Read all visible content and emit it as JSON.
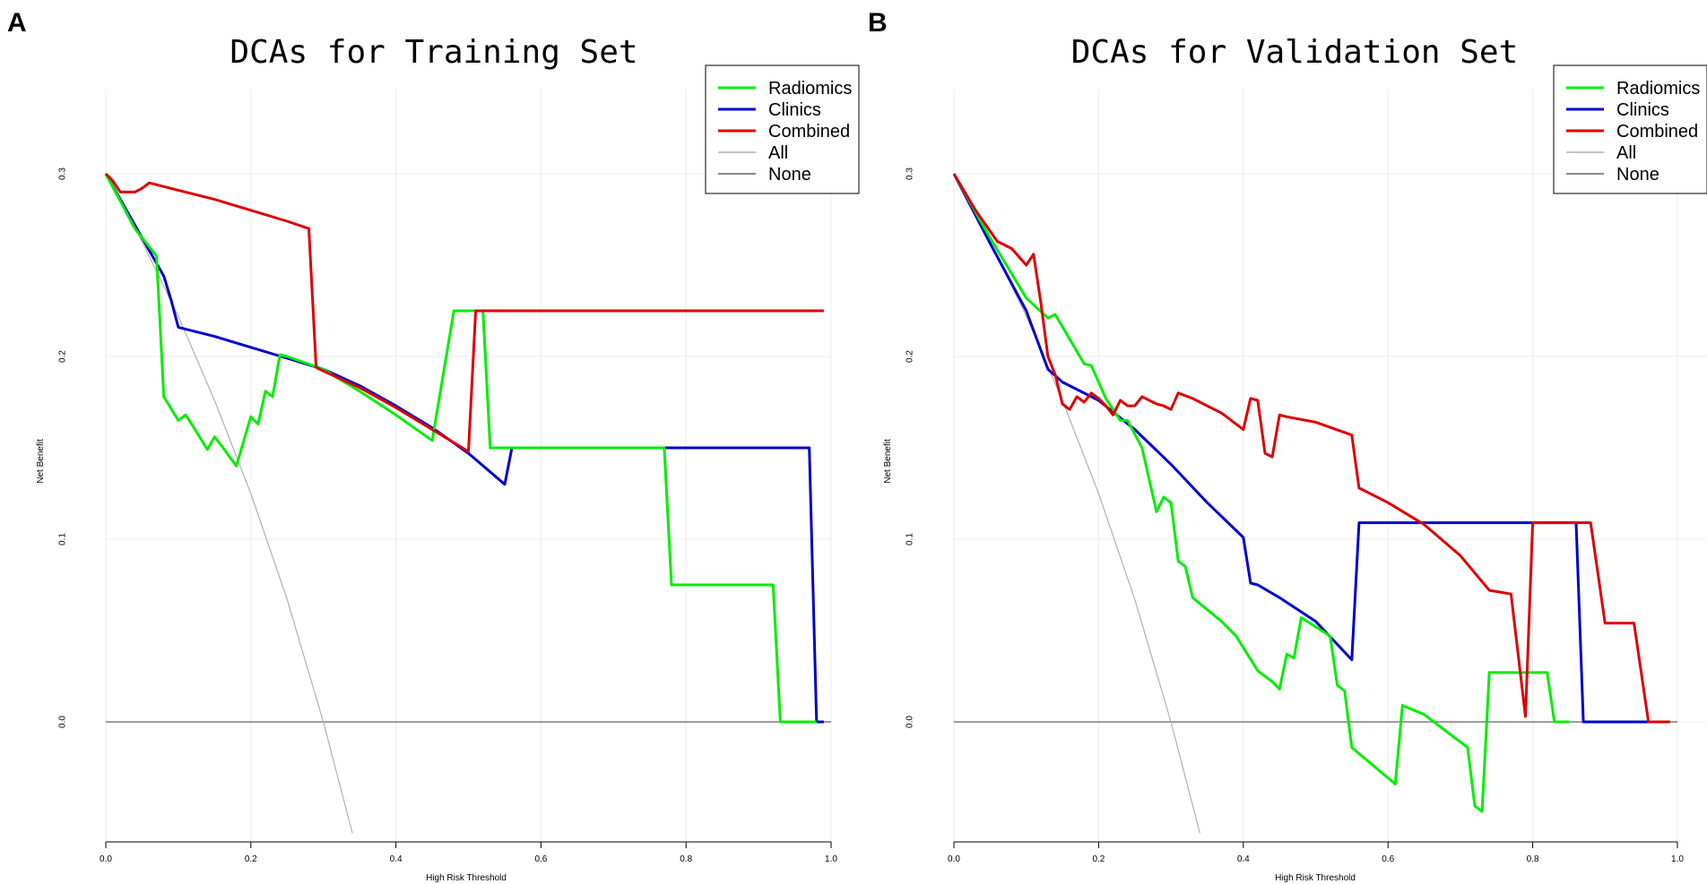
{
  "panels": [
    {
      "letter": "A"
    },
    {
      "letter": "B"
    }
  ],
  "chart_data": [
    {
      "type": "line",
      "title": "DCAs for Training Set",
      "xlabel": "High Risk Threshold",
      "ylabel": "Net Benefit",
      "xlim": [
        0.0,
        1.0
      ],
      "ylim": [
        -0.066,
        0.345
      ],
      "xticks": [
        0.0,
        0.2,
        0.4,
        0.6,
        0.8,
        1.0
      ],
      "xtick_labels": [
        "0.0",
        "0.2",
        "0.4",
        "0.6",
        "0.8",
        "1.0"
      ],
      "yticks": [
        0.0,
        0.1,
        0.2,
        0.3
      ],
      "ytick_labels": [
        "0.0",
        "0.1",
        "0.2",
        "0.3"
      ],
      "grid": true,
      "legend_position": "top-right",
      "series": [
        {
          "name": "Radiomics",
          "color": "#00ee00",
          "x": [
            0.0,
            0.02,
            0.04,
            0.06,
            0.07,
            0.08,
            0.1,
            0.11,
            0.12,
            0.14,
            0.15,
            0.16,
            0.18,
            0.2,
            0.21,
            0.22,
            0.23,
            0.24,
            0.25,
            0.3,
            0.35,
            0.4,
            0.45,
            0.48,
            0.49,
            0.51,
            0.52,
            0.53,
            0.56,
            0.6,
            0.7,
            0.77,
            0.78,
            0.92,
            0.93,
            0.98
          ],
          "y": [
            0.3,
            0.285,
            0.27,
            0.26,
            0.255,
            0.178,
            0.165,
            0.168,
            0.162,
            0.149,
            0.156,
            0.151,
            0.14,
            0.167,
            0.163,
            0.181,
            0.178,
            0.201,
            0.2,
            0.193,
            0.181,
            0.168,
            0.154,
            0.225,
            0.225,
            0.225,
            0.225,
            0.15,
            0.15,
            0.15,
            0.15,
            0.15,
            0.075,
            0.075,
            0.0,
            0.0
          ]
        },
        {
          "name": "Clinics",
          "color": "#0000cc",
          "x": [
            0.0,
            0.02,
            0.04,
            0.06,
            0.08,
            0.09,
            0.1,
            0.15,
            0.2,
            0.25,
            0.3,
            0.35,
            0.4,
            0.45,
            0.5,
            0.55,
            0.56,
            0.6,
            0.7,
            0.8,
            0.9,
            0.97,
            0.98,
            0.99
          ],
          "y": [
            0.3,
            0.286,
            0.272,
            0.258,
            0.244,
            0.231,
            0.216,
            0.211,
            0.205,
            0.199,
            0.193,
            0.184,
            0.173,
            0.161,
            0.147,
            0.13,
            0.15,
            0.15,
            0.15,
            0.15,
            0.15,
            0.15,
            0.0,
            0.0
          ]
        },
        {
          "name": "Combined",
          "color": "#dd0000",
          "x": [
            0.0,
            0.01,
            0.02,
            0.03,
            0.04,
            0.05,
            0.06,
            0.1,
            0.15,
            0.2,
            0.25,
            0.28,
            0.29,
            0.3,
            0.35,
            0.4,
            0.45,
            0.5,
            0.51,
            0.52,
            0.6,
            0.7,
            0.8,
            0.9,
            0.99
          ],
          "y": [
            0.3,
            0.296,
            0.29,
            0.29,
            0.29,
            0.292,
            0.295,
            0.291,
            0.286,
            0.28,
            0.274,
            0.27,
            0.194,
            0.192,
            0.183,
            0.172,
            0.16,
            0.148,
            0.225,
            0.225,
            0.225,
            0.225,
            0.225,
            0.225,
            0.225
          ]
        },
        {
          "name": "All",
          "color": "#b0b0b0",
          "x": [
            0.0,
            0.05,
            0.1,
            0.15,
            0.2,
            0.25,
            0.3,
            0.34
          ],
          "y": [
            0.3,
            0.263,
            0.222,
            0.176,
            0.125,
            0.067,
            0.0,
            -0.061
          ]
        },
        {
          "name": "None",
          "color": "#606060",
          "x": [
            0.0,
            1.0
          ],
          "y": [
            0.0,
            0.0
          ]
        }
      ]
    },
    {
      "type": "line",
      "title": "DCAs for Validation Set",
      "xlabel": "High Risk Threshold",
      "ylabel": "Net Benefit",
      "xlim": [
        0.0,
        1.0
      ],
      "ylim": [
        -0.066,
        0.345
      ],
      "xticks": [
        0.0,
        0.2,
        0.4,
        0.6,
        0.8,
        1.0
      ],
      "xtick_labels": [
        "0.0",
        "0.2",
        "0.4",
        "0.6",
        "0.8",
        "1.0"
      ],
      "yticks": [
        0.0,
        0.1,
        0.2,
        0.3
      ],
      "ytick_labels": [
        "0.0",
        "0.1",
        "0.2",
        "0.3"
      ],
      "grid": true,
      "legend_position": "top-right",
      "series": [
        {
          "name": "Radiomics",
          "color": "#00ee00",
          "x": [
            0.0,
            0.05,
            0.1,
            0.13,
            0.14,
            0.18,
            0.19,
            0.21,
            0.23,
            0.24,
            0.26,
            0.28,
            0.29,
            0.3,
            0.31,
            0.32,
            0.33,
            0.37,
            0.39,
            0.42,
            0.44,
            0.45,
            0.46,
            0.47,
            0.48,
            0.5,
            0.52,
            0.53,
            0.54,
            0.55,
            0.61,
            0.62,
            0.65,
            0.7,
            0.71,
            0.72,
            0.73,
            0.74,
            0.82,
            0.83,
            0.85
          ],
          "y": [
            0.3,
            0.265,
            0.232,
            0.221,
            0.223,
            0.196,
            0.195,
            0.177,
            0.165,
            0.165,
            0.15,
            0.115,
            0.123,
            0.12,
            0.088,
            0.085,
            0.068,
            0.055,
            0.047,
            0.028,
            0.022,
            0.018,
            0.037,
            0.035,
            0.057,
            0.052,
            0.047,
            0.02,
            0.017,
            -0.014,
            -0.034,
            0.009,
            0.004,
            -0.011,
            -0.014,
            -0.046,
            -0.049,
            0.027,
            0.027,
            0.0,
            0.0
          ]
        },
        {
          "name": "Clinics",
          "color": "#0000cc",
          "x": [
            0.0,
            0.05,
            0.1,
            0.13,
            0.15,
            0.2,
            0.25,
            0.3,
            0.35,
            0.4,
            0.41,
            0.42,
            0.45,
            0.5,
            0.55,
            0.56,
            0.6,
            0.7,
            0.8,
            0.86,
            0.87,
            0.9,
            0.96
          ],
          "y": [
            0.3,
            0.262,
            0.225,
            0.193,
            0.186,
            0.176,
            0.16,
            0.141,
            0.12,
            0.101,
            0.076,
            0.075,
            0.068,
            0.055,
            0.034,
            0.109,
            0.109,
            0.109,
            0.109,
            0.109,
            0.0,
            0.0,
            0.0
          ]
        },
        {
          "name": "Combined",
          "color": "#dd0000",
          "x": [
            0.0,
            0.03,
            0.06,
            0.08,
            0.1,
            0.11,
            0.12,
            0.13,
            0.14,
            0.15,
            0.16,
            0.17,
            0.18,
            0.19,
            0.2,
            0.21,
            0.22,
            0.23,
            0.24,
            0.25,
            0.26,
            0.27,
            0.28,
            0.29,
            0.3,
            0.31,
            0.33,
            0.35,
            0.37,
            0.4,
            0.41,
            0.42,
            0.43,
            0.44,
            0.45,
            0.46,
            0.5,
            0.55,
            0.56,
            0.6,
            0.65,
            0.7,
            0.74,
            0.77,
            0.79,
            0.8,
            0.81,
            0.88,
            0.9,
            0.94,
            0.96,
            0.99
          ],
          "y": [
            0.3,
            0.28,
            0.263,
            0.259,
            0.25,
            0.256,
            0.23,
            0.2,
            0.19,
            0.174,
            0.171,
            0.178,
            0.175,
            0.18,
            0.177,
            0.173,
            0.168,
            0.176,
            0.173,
            0.173,
            0.178,
            0.176,
            0.174,
            0.173,
            0.171,
            0.18,
            0.177,
            0.173,
            0.169,
            0.16,
            0.177,
            0.176,
            0.147,
            0.145,
            0.168,
            0.167,
            0.164,
            0.157,
            0.128,
            0.12,
            0.108,
            0.091,
            0.072,
            0.07,
            0.003,
            0.109,
            0.109,
            0.109,
            0.054,
            0.054,
            0.0,
            0.0
          ]
        },
        {
          "name": "All",
          "color": "#b0b0b0",
          "x": [
            0.0,
            0.05,
            0.1,
            0.15,
            0.2,
            0.25,
            0.3,
            0.34
          ],
          "y": [
            0.3,
            0.263,
            0.222,
            0.176,
            0.125,
            0.067,
            0.0,
            -0.061
          ]
        },
        {
          "name": "None",
          "color": "#606060",
          "x": [
            0.0,
            1.0
          ],
          "y": [
            0.0,
            0.0
          ]
        }
      ]
    }
  ]
}
